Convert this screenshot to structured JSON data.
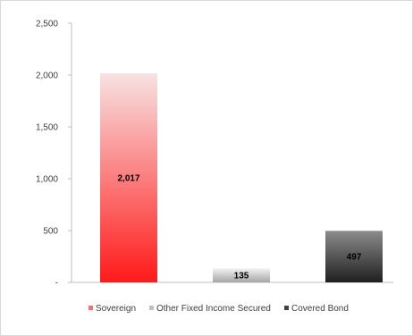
{
  "chart_data": {
    "type": "bar",
    "categories": [
      "Sovereign",
      "Other Fixed Income Secured",
      "Covered Bond"
    ],
    "values": [
      2017,
      135,
      497
    ],
    "data_labels": [
      "2,017",
      "135",
      "497"
    ],
    "ylim": [
      0,
      2500
    ],
    "yticks": [
      0,
      500,
      1000,
      1500,
      2000,
      2500
    ],
    "ytick_labels": [
      "-",
      "500",
      "1,000",
      "1,500",
      "2,000",
      "2,500"
    ],
    "grid": false,
    "legend": {
      "placement": "bottom",
      "entries": [
        "Sovereign",
        "Other Fixed Income Secured",
        "Covered Bond"
      ]
    },
    "colors": {
      "sovereign_top": "#f7e2e2",
      "sovereign_bottom": "#ff1a1a",
      "other_top": "#f2f2f2",
      "other_bottom": "#a6a6a6",
      "covered_top": "#8c8c8c",
      "covered_bottom": "#1f1f1f",
      "legend_sovereign": "#ff6b6b",
      "legend_other": "#bfbfbf",
      "legend_covered": "#404040"
    }
  }
}
